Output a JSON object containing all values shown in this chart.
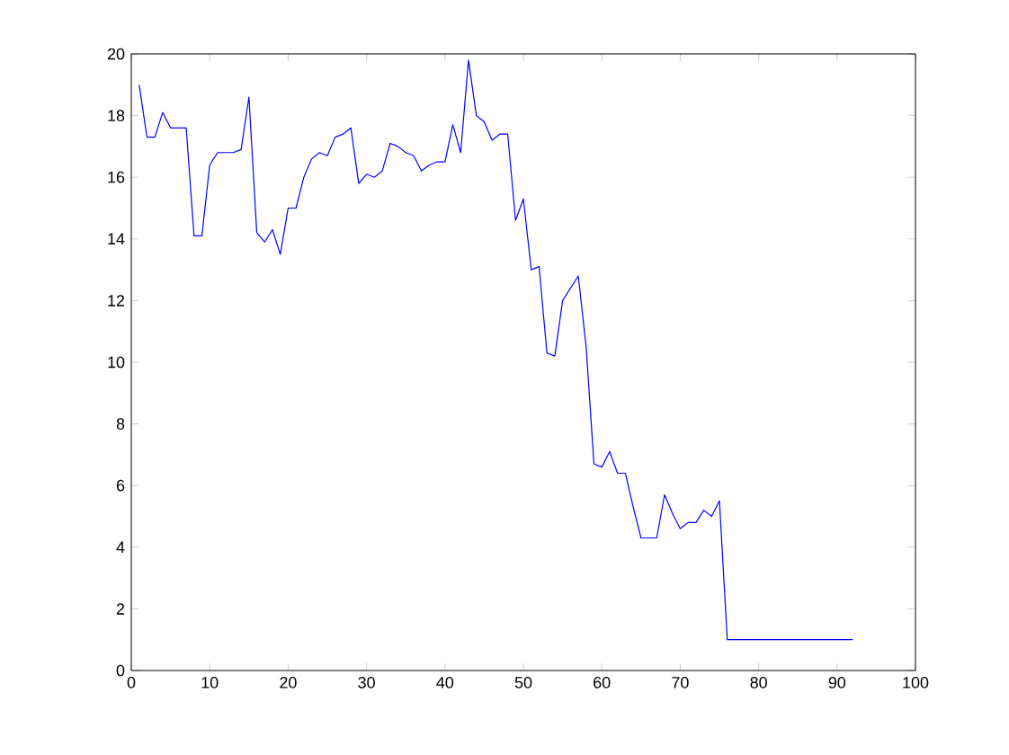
{
  "chart_data": {
    "type": "line",
    "x": [
      1,
      2,
      3,
      4,
      5,
      6,
      7,
      8,
      9,
      10,
      11,
      12,
      13,
      14,
      15,
      16,
      17,
      18,
      19,
      20,
      21,
      22,
      23,
      24,
      25,
      26,
      27,
      28,
      29,
      30,
      31,
      32,
      33,
      34,
      35,
      36,
      37,
      38,
      39,
      40,
      41,
      42,
      43,
      44,
      45,
      46,
      47,
      48,
      49,
      50,
      51,
      52,
      53,
      54,
      55,
      56,
      57,
      58,
      59,
      60,
      61,
      62,
      63,
      64,
      65,
      66,
      67,
      68,
      69,
      70,
      71,
      72,
      73,
      74,
      75,
      76,
      77,
      78,
      79,
      80,
      81,
      82,
      83,
      84,
      85,
      86,
      87,
      88,
      89,
      90,
      91,
      92
    ],
    "series": [
      {
        "color": "#0000ff",
        "values": [
          19.0,
          17.3,
          17.3,
          18.1,
          17.6,
          17.6,
          17.6,
          14.1,
          14.1,
          16.4,
          16.8,
          16.8,
          16.8,
          16.9,
          18.6,
          14.2,
          13.9,
          14.3,
          13.5,
          15.0,
          15.0,
          16.0,
          16.6,
          16.8,
          16.7,
          17.3,
          17.4,
          17.6,
          15.8,
          16.1,
          16.0,
          16.2,
          17.1,
          17.0,
          16.8,
          16.7,
          16.2,
          16.4,
          16.5,
          16.5,
          17.7,
          16.8,
          19.8,
          18.0,
          17.8,
          17.2,
          17.4,
          17.4,
          14.6,
          15.3,
          13.0,
          13.1,
          10.3,
          10.2,
          12.0,
          12.4,
          12.8,
          10.5,
          6.7,
          6.6,
          7.1,
          6.4,
          6.4,
          5.3,
          4.3,
          4.3,
          4.3,
          5.7,
          5.1,
          4.6,
          4.8,
          4.8,
          5.2,
          5.0,
          5.5,
          1.0,
          1.0,
          1.0,
          1.0,
          1.0,
          1.0,
          1.0,
          1.0,
          1.0,
          1.0,
          1.0,
          1.0,
          1.0,
          1.0,
          1.0,
          1.0,
          1.0
        ]
      }
    ],
    "xlim": [
      0,
      100
    ],
    "ylim": [
      0,
      20
    ],
    "xticks": [
      0,
      10,
      20,
      30,
      40,
      50,
      60,
      70,
      80,
      90,
      100
    ],
    "yticks": [
      0,
      2,
      4,
      6,
      8,
      10,
      12,
      14,
      16,
      18,
      20
    ]
  }
}
